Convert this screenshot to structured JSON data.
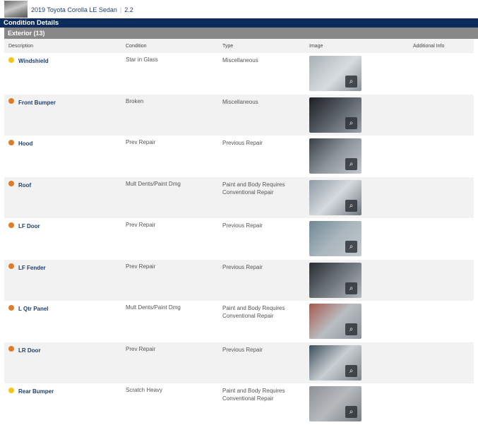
{
  "vehicle": {
    "title": "2019 Toyota Corolla LE Sedan",
    "grade": "2.2"
  },
  "section_title": "Condition Details",
  "group_title": "Exterior (13)",
  "columns": {
    "description": "Description",
    "condition": "Condition",
    "type": "Type",
    "image": "Image",
    "additional": "Additional Info"
  },
  "colors": {
    "yellow": "#f5c518",
    "orange": "#e07b28",
    "navy": "#0c2d5c"
  },
  "rows": [
    {
      "description": "Windshield",
      "condition": "Star in Glass",
      "type": "Miscellaneous",
      "severity": "yellow"
    },
    {
      "description": "Front Bumper",
      "condition": "Broken",
      "type": "Miscellaneous",
      "severity": "orange"
    },
    {
      "description": "Hood",
      "condition": "Prev Repair",
      "type": "Previous Repair",
      "severity": "orange"
    },
    {
      "description": "Roof",
      "condition": "Mult Dents/Paint Dmg",
      "type": "Paint and Body Requires Conventional Repair",
      "severity": "orange"
    },
    {
      "description": "LF Door",
      "condition": "Prev Repair",
      "type": "Previous Repair",
      "severity": "orange"
    },
    {
      "description": "LF Fender",
      "condition": "Prev Repair",
      "type": "Previous Repair",
      "severity": "orange"
    },
    {
      "description": "L Qtr Panel",
      "condition": "Mult Dents/Paint Dmg",
      "type": "Paint and Body Requires Conventional Repair",
      "severity": "orange"
    },
    {
      "description": "LR Door",
      "condition": "Prev Repair",
      "type": "Previous Repair",
      "severity": "orange"
    },
    {
      "description": "Rear Bumper",
      "condition": "Scratch Heavy",
      "type": "Paint and Body Requires Conventional Repair",
      "severity": "yellow"
    }
  ]
}
